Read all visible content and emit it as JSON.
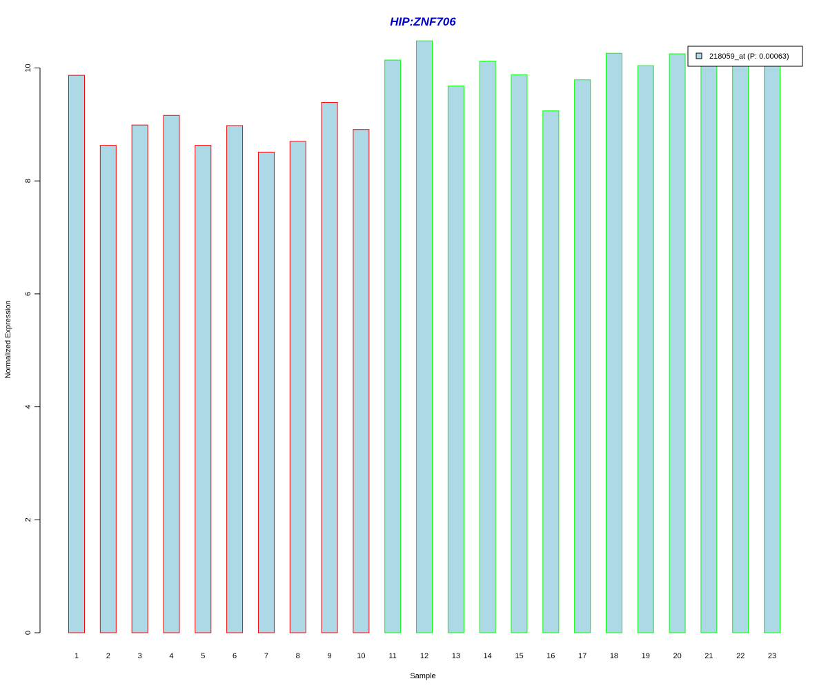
{
  "chart_data": {
    "type": "bar",
    "title": "HIP:ZNF706",
    "xlabel": "Sample",
    "ylabel": "Normalized Expression",
    "categories": [
      "1",
      "2",
      "3",
      "4",
      "5",
      "6",
      "7",
      "8",
      "9",
      "10",
      "11",
      "12",
      "13",
      "14",
      "15",
      "16",
      "17",
      "18",
      "19",
      "20",
      "21",
      "22",
      "23"
    ],
    "series": [
      {
        "name": "218059_at (P: 0.00063)",
        "values": [
          9.87,
          8.63,
          8.99,
          9.16,
          8.63,
          8.98,
          8.51,
          8.7,
          9.39,
          8.91,
          10.14,
          10.48,
          9.68,
          10.12,
          9.88,
          9.24,
          9.79,
          10.26,
          10.04,
          10.25,
          10.1,
          10.1,
          10.1
        ]
      }
    ],
    "bar_group": [
      "red",
      "red",
      "red",
      "red",
      "red",
      "red",
      "red",
      "red",
      "red",
      "red",
      "green",
      "green",
      "green",
      "green",
      "green",
      "green",
      "green",
      "green",
      "green",
      "green",
      "green",
      "green",
      "green"
    ],
    "ylim": [
      0,
      10.5
    ],
    "yticks": [
      0,
      2,
      4,
      6,
      8,
      10
    ],
    "grid": false,
    "legend_position": "top-right",
    "colors": {
      "bar_fill": "#add8e6",
      "red": "#ff0000",
      "green": "#00ff00",
      "title": "#0000cd",
      "axis": "#000000"
    }
  }
}
